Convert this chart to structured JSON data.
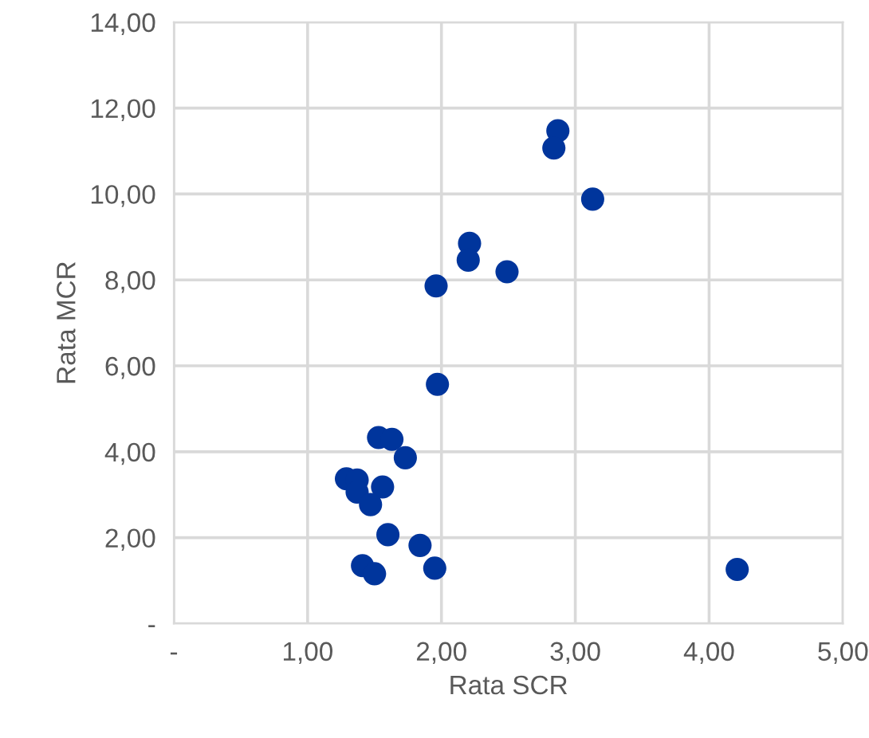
{
  "chart_data": {
    "type": "scatter",
    "xlabel": "Rata SCR",
    "ylabel": "Rata MCR",
    "x": [
      2.87,
      2.84,
      3.13,
      2.21,
      2.2,
      2.49,
      1.96,
      1.97,
      1.53,
      1.63,
      1.73,
      1.29,
      1.37,
      1.56,
      1.37,
      1.43,
      1.47,
      1.6,
      1.84,
      1.41,
      1.5,
      1.95,
      4.21
    ],
    "values": [
      11.47,
      11.07,
      9.88,
      8.85,
      8.46,
      8.19,
      7.86,
      5.57,
      4.33,
      4.29,
      3.86,
      3.37,
      3.34,
      3.18,
      3.06,
      null,
      2.77,
      2.07,
      1.82,
      1.35,
      1.16,
      1.29,
      1.26
    ],
    "color": "#00359c",
    "marker": "circle",
    "grid": true,
    "xlim": [
      0,
      5
    ],
    "ylim": [
      0,
      14
    ],
    "xticks": [
      {
        "value": 0,
        "label": "-"
      },
      {
        "value": 1,
        "label": "1,00"
      },
      {
        "value": 2,
        "label": "2,00"
      },
      {
        "value": 3,
        "label": "3,00"
      },
      {
        "value": 4,
        "label": "4,00"
      },
      {
        "value": 5,
        "label": "5,00"
      }
    ],
    "yticks": [
      {
        "value": 0,
        "label": "-"
      },
      {
        "value": 2,
        "label": "2,00"
      },
      {
        "value": 4,
        "label": "4,00"
      },
      {
        "value": 6,
        "label": "6,00"
      },
      {
        "value": 8,
        "label": "8,00"
      },
      {
        "value": 10,
        "label": "10,00"
      },
      {
        "value": 12,
        "label": "12,00"
      },
      {
        "value": 14,
        "label": "14,00"
      }
    ]
  }
}
